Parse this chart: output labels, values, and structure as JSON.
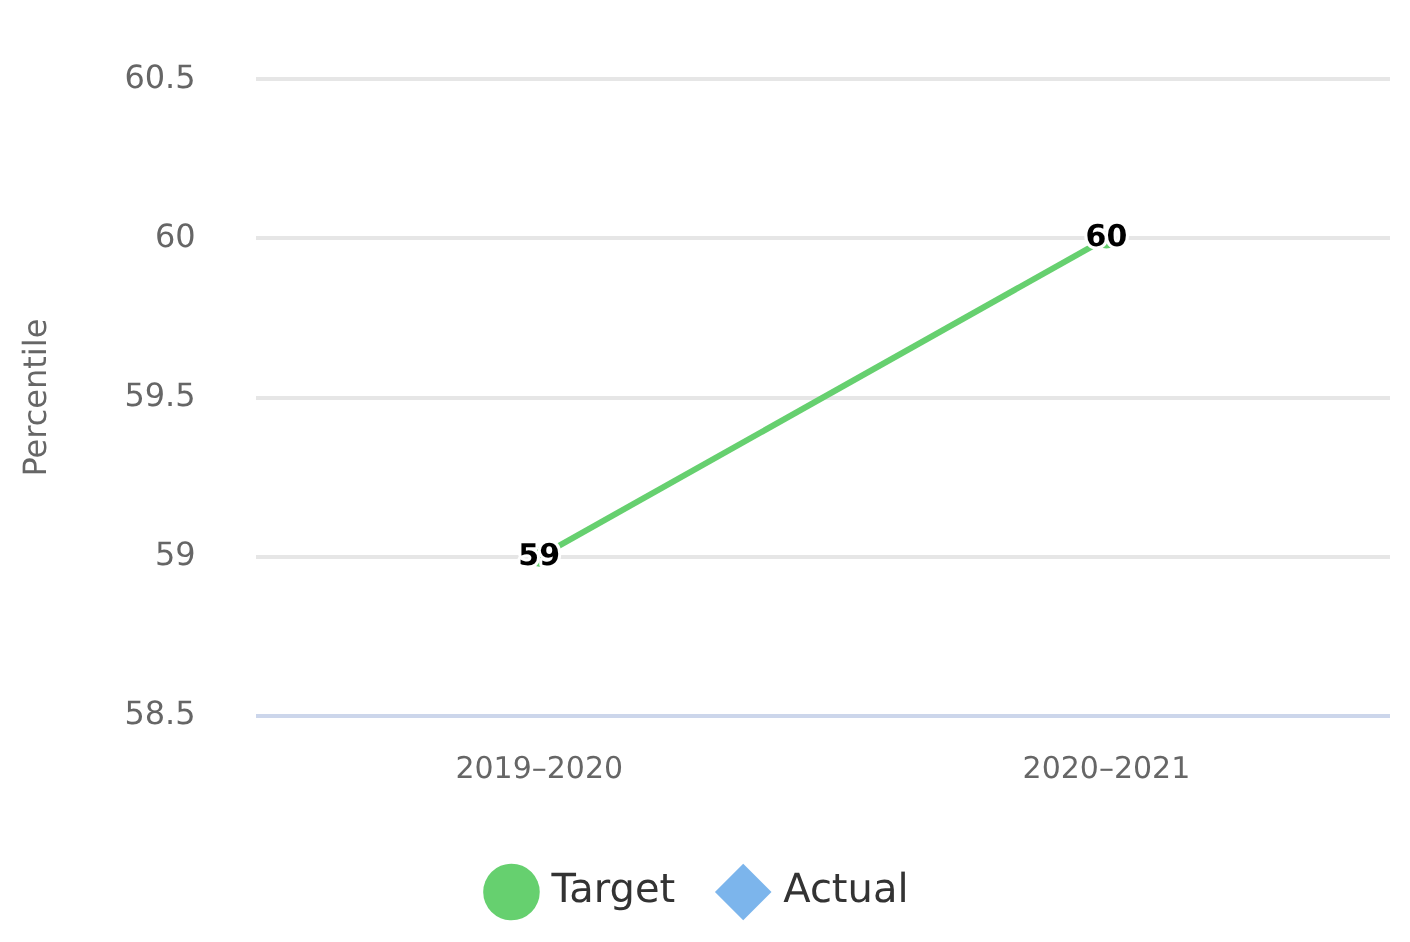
{
  "chart_data": {
    "type": "line",
    "ylabel": "Percentile",
    "categories": [
      "2019–2020",
      "2020–2021"
    ],
    "series": [
      {
        "name": "Target",
        "color": "#66d06f",
        "marker": "circle",
        "values": [
          59,
          60
        ]
      },
      {
        "name": "Actual",
        "color": "#7cb5ec",
        "marker": "diamond",
        "values": [
          null,
          null
        ]
      }
    ],
    "ylim": [
      58.5,
      60.5
    ],
    "yticks": [
      58.5,
      59,
      59.5,
      60,
      60.5
    ],
    "grid": "y",
    "legend": "bottom",
    "data_labels": true
  }
}
